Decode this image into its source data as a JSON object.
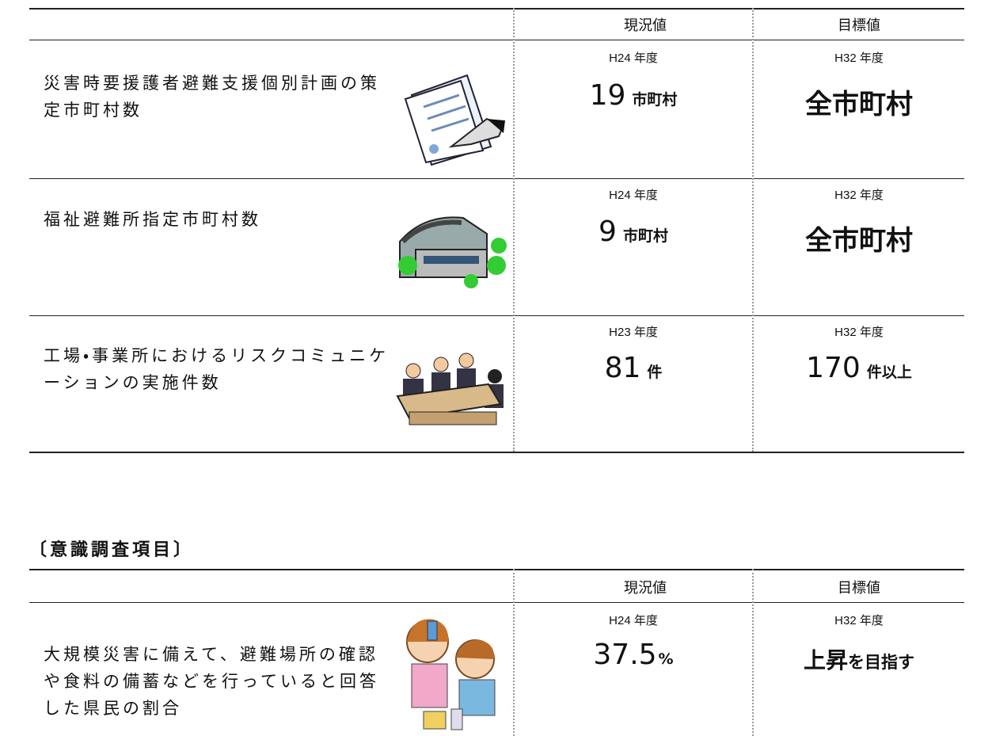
{
  "table1": {
    "header": [
      "現況値",
      "目標値"
    ],
    "rows": [
      {
        "item": "災害時要援護者避難支援個別計画の策定市町村数",
        "current_year": "H24 年度",
        "current_value": "19",
        "current_unit": "市町村",
        "target_year": "H32 年度",
        "target_value": "全市町村"
      },
      {
        "item": "福祉避難所指定市町村数",
        "current_year": "H24 年度",
        "current_value": "9",
        "current_unit": "市町村",
        "target_year": "H32 年度",
        "target_value": "全市町村"
      },
      {
        "item": "工場・事業所におけるリスクコミュニケーションの実施件数",
        "current_year": "H23 年度",
        "current_value": "81",
        "current_unit": "件",
        "target_year": "H32 年度",
        "target_value": "170",
        "target_unit": "件以上"
      }
    ]
  },
  "section_title": "〔意識調査項目〕",
  "table2": {
    "header": [
      "現況値",
      "目標値"
    ],
    "rows": [
      {
        "item": "大規模災害に備えて、避難場所の確認や食料の備蓄などを行っていると回答した県民の割合",
        "current_year": "H24 年度",
        "current_value": "37.5",
        "current_unit": "%",
        "target_year": "H32 年度",
        "target_value": "上昇",
        "target_unit": "を目指す"
      }
    ]
  }
}
